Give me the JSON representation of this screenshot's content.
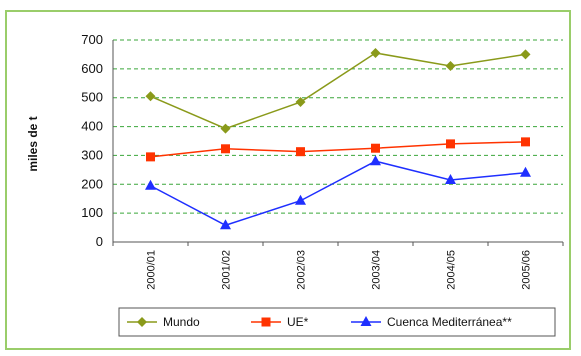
{
  "chart_data": {
    "type": "line",
    "title": "",
    "xlabel": "",
    "ylabel": "miles de t",
    "ylim": [
      0,
      700
    ],
    "yticks": [
      0,
      100,
      200,
      300,
      400,
      500,
      600,
      700
    ],
    "grid": "horizontal dashed",
    "legend_position": "bottom",
    "categories": [
      "2000/01",
      "2001/02",
      "2002/03",
      "2003/04",
      "2004/05",
      "2005/06"
    ],
    "series": [
      {
        "name": "Mundo",
        "color": "#8a9a1a",
        "marker": "diamond",
        "values": [
          505,
          393,
          485,
          655,
          610,
          650
        ]
      },
      {
        "name": "UE*",
        "color": "#ff3300",
        "marker": "square",
        "values": [
          295,
          323,
          313,
          325,
          340,
          347
        ]
      },
      {
        "name": "Cuenca Mediterránea**",
        "color": "#1f2fff",
        "marker": "triangle",
        "values": [
          195,
          58,
          143,
          280,
          215,
          240
        ]
      }
    ]
  }
}
